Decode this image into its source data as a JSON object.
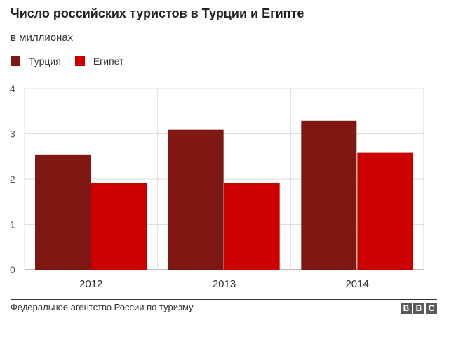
{
  "title": "Число российских туристов в Турции и Египте",
  "subtitle": "в миллионах",
  "source": "Федеральное агентство России по туризму",
  "logo": [
    "B",
    "B",
    "C"
  ],
  "chart_data": {
    "type": "bar",
    "categories": [
      "2012",
      "2013",
      "2014"
    ],
    "series": [
      {
        "name": "Турция",
        "color": "#7f1712",
        "values": [
          2.53,
          3.09,
          3.29
        ]
      },
      {
        "name": "Египет",
        "color": "#cc0000",
        "values": [
          1.92,
          1.92,
          2.58
        ]
      }
    ],
    "ylim": [
      0,
      4
    ],
    "yticks": [
      "0",
      "1",
      "2",
      "3",
      "4"
    ],
    "grid": true,
    "legend": "top-left"
  }
}
